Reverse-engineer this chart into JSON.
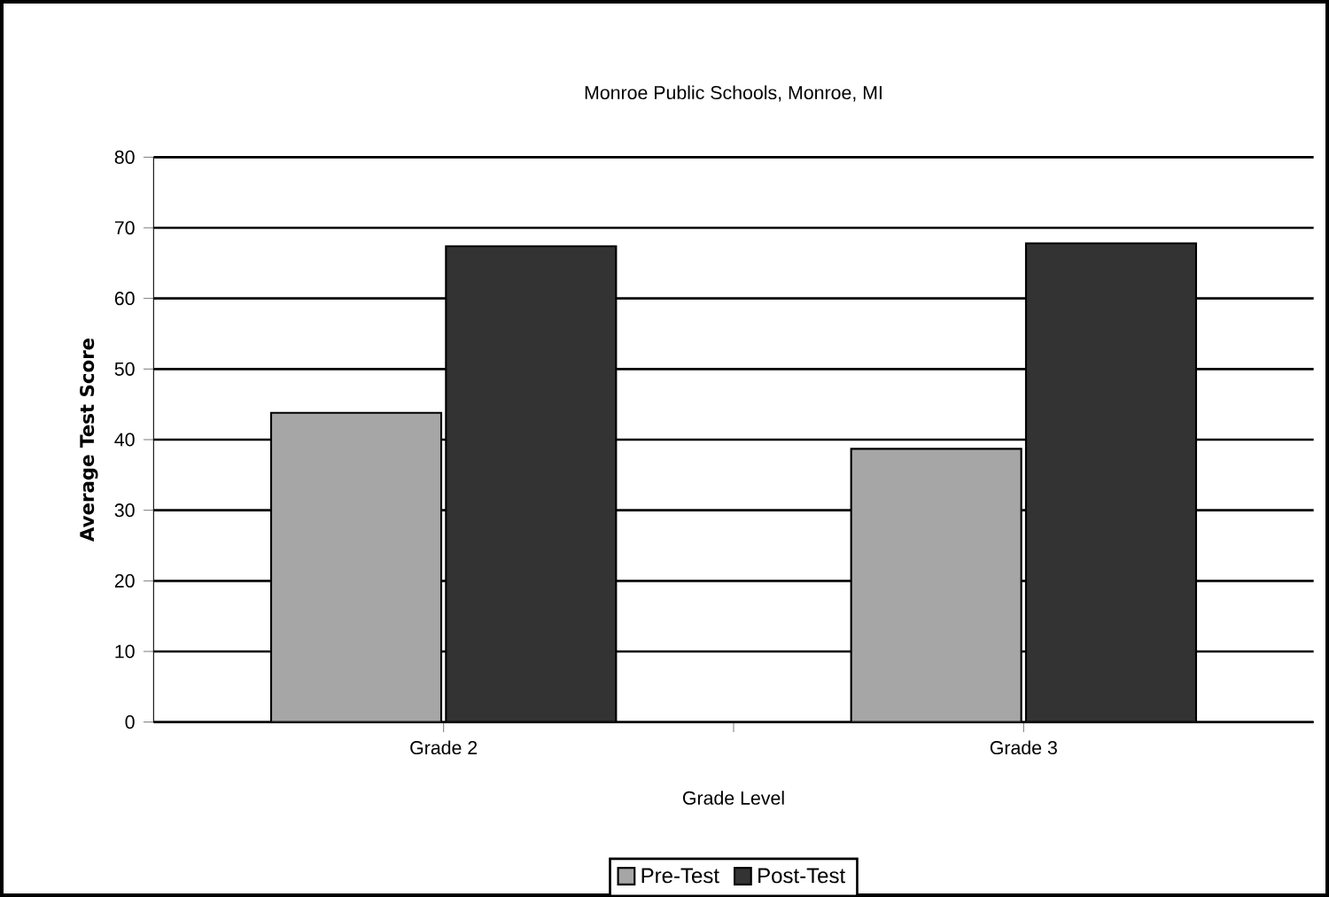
{
  "chart_data": {
    "type": "bar",
    "title": "Monroe Public Schools, Monroe, MI",
    "xlabel": "Grade Level",
    "ylabel": "Average Test Score",
    "categories": [
      "Grade 2",
      "Grade 3"
    ],
    "series": [
      {
        "name": "Pre-Test",
        "color": "#a6a6a6",
        "values": [
          43.8,
          38.7
        ]
      },
      {
        "name": "Post-Test",
        "color": "#333333",
        "values": [
          67.4,
          67.8
        ]
      }
    ],
    "ylim": [
      0,
      80
    ],
    "yticks": [
      0,
      10,
      20,
      30,
      40,
      50,
      60,
      70,
      80
    ],
    "grid": "y",
    "legend": "bottom"
  }
}
